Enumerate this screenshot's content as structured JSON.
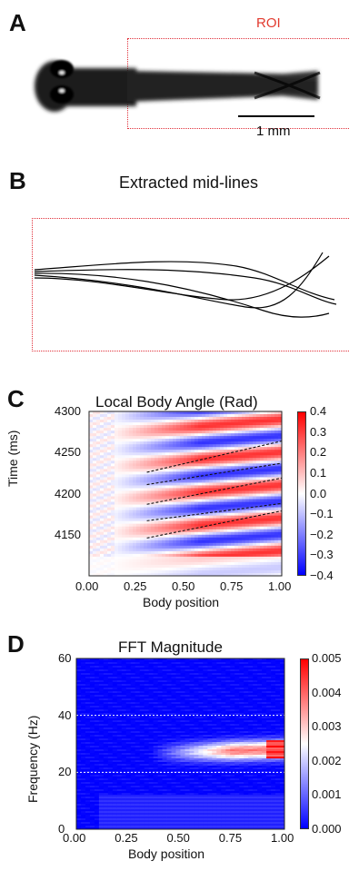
{
  "panel_a": {
    "label": "A",
    "roi_label": "ROI",
    "scale_bar_label": "1 mm"
  },
  "panel_b": {
    "label": "B",
    "title": "Extracted mid-lines"
  },
  "panel_c": {
    "label": "C",
    "title": "Local Body Angle (Rad)",
    "xlabel": "Body position",
    "ylabel": "Time (ms)",
    "x_ticks": [
      "0.00",
      "0.25",
      "0.50",
      "0.75",
      "1.00"
    ],
    "y_ticks": [
      "4300",
      "4250",
      "4200",
      "4150"
    ],
    "colorbar_ticks": [
      "0.4",
      "0.3",
      "0.2",
      "0.1",
      "0.0",
      "−0.1",
      "−0.2",
      "−0.3",
      "−0.4"
    ]
  },
  "panel_d": {
    "label": "D",
    "title": "FFT Magnitude",
    "xlabel": "Body position",
    "ylabel": "Frequency (Hz)",
    "x_ticks": [
      "0.00",
      "0.25",
      "0.50",
      "0.75",
      "1.00"
    ],
    "y_ticks": [
      "60",
      "40",
      "20",
      "0"
    ],
    "colorbar_ticks": [
      "0.005",
      "0.004",
      "0.003",
      "0.002",
      "0.001",
      "0.000"
    ]
  },
  "colors": {
    "roi": "#e23a2e",
    "cmap_low": "#0000ff",
    "cmap_mid": "#ffffff",
    "cmap_high": "#ff0000"
  },
  "chart_data": [
    {
      "type": "heatmap",
      "title": "Local Body Angle (Rad)",
      "xlabel": "Body position",
      "ylabel": "Time (ms)",
      "xlim": [
        0.0,
        1.0
      ],
      "ylim": [
        4100,
        4300
      ],
      "colorbar_range": [
        -0.4,
        0.4
      ],
      "wave_crests_dashed": [
        {
          "x": [
            0.3,
            1.0
          ],
          "y": [
            4226,
            4264
          ]
        },
        {
          "x": [
            0.3,
            1.0
          ],
          "y": [
            4211,
            4237
          ]
        },
        {
          "x": [
            0.3,
            1.0
          ],
          "y": [
            4187,
            4219
          ]
        },
        {
          "x": [
            0.3,
            1.0
          ],
          "y": [
            4167,
            4188
          ]
        },
        {
          "x": [
            0.3,
            1.0
          ],
          "y": [
            4146,
            4179
          ]
        }
      ]
    },
    {
      "type": "heatmap",
      "title": "FFT Magnitude",
      "xlabel": "Body position",
      "ylabel": "Frequency (Hz)",
      "xlim": [
        0.0,
        1.0
      ],
      "ylim": [
        0,
        60
      ],
      "colorbar_range": [
        0.0,
        0.005
      ],
      "reference_lines_hz": [
        40,
        20
      ]
    }
  ]
}
